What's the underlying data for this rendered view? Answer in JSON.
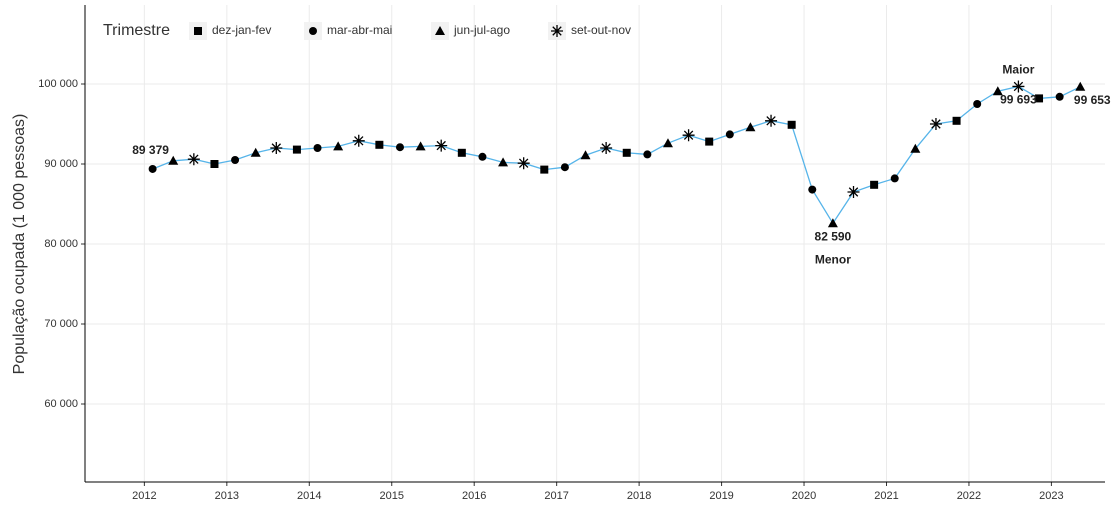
{
  "chart_data": {
    "type": "line",
    "y_label": "População ocupada (1 000 pessoas)",
    "legend_title": "Trimestre",
    "line_color": "#56b4e9",
    "marker_color": "#000000",
    "grid": true,
    "legend_position": "top-left",
    "xlim": [
      2011.28,
      2023.65
    ],
    "xticks": [
      2012,
      2013,
      2014,
      2015,
      2016,
      2017,
      2018,
      2019,
      2020,
      2021,
      2022,
      2023
    ],
    "ylim": [
      50250,
      109875
    ],
    "yticks": [
      {
        "value": 60000,
        "label": "60 000"
      },
      {
        "value": 70000,
        "label": "70 000"
      },
      {
        "value": 80000,
        "label": "80 000"
      },
      {
        "value": 90000,
        "label": "90 000"
      },
      {
        "value": 100000,
        "label": "100 000"
      }
    ],
    "series": [
      {
        "name": "dez-jan-fev",
        "marker": "square",
        "x": [
          2012.85,
          2013.85,
          2014.85,
          2015.85,
          2016.85,
          2017.85,
          2018.85,
          2019.85,
          2020.85,
          2021.85,
          2022.85
        ],
        "values": [
          90000,
          91800,
          92400,
          91400,
          89300,
          91400,
          92800,
          94900,
          87400,
          95400,
          98200
        ]
      },
      {
        "name": "mar-abr-mai",
        "marker": "circle",
        "x": [
          2012.1,
          2013.1,
          2014.1,
          2015.1,
          2016.1,
          2017.1,
          2018.1,
          2019.1,
          2020.1,
          2021.1,
          2022.1,
          2023.1
        ],
        "values": [
          89379,
          90500,
          92000,
          92100,
          90900,
          89600,
          91200,
          93700,
          86800,
          88200,
          97500,
          98400
        ],
        "value_labels": [
          "89 379",
          null,
          null,
          null,
          null,
          null,
          null,
          null,
          null,
          null,
          null,
          null
        ]
      },
      {
        "name": "jun-jul-ago",
        "marker": "triangle",
        "x": [
          2012.35,
          2013.35,
          2014.35,
          2015.35,
          2016.35,
          2017.35,
          2018.35,
          2019.35,
          2020.35,
          2021.35,
          2022.35,
          2023.35
        ],
        "values": [
          90400,
          91400,
          92200,
          92200,
          90200,
          91100,
          92600,
          94600,
          82590,
          91900,
          99100,
          99653
        ],
        "value_labels": [
          null,
          null,
          null,
          null,
          null,
          null,
          null,
          null,
          "82 590",
          null,
          null,
          "99 653"
        ]
      },
      {
        "name": "set-out-nov",
        "marker": "star",
        "x": [
          2012.6,
          2013.6,
          2014.6,
          2015.6,
          2016.6,
          2017.6,
          2018.6,
          2019.6,
          2020.6,
          2021.6,
          2022.6
        ],
        "values": [
          90600,
          92000,
          92900,
          92300,
          90100,
          92000,
          93600,
          95400,
          86500,
          95000,
          99693
        ],
        "value_labels": [
          null,
          null,
          null,
          null,
          null,
          null,
          null,
          null,
          null,
          null,
          "99 693"
        ]
      }
    ],
    "annotations": {
      "min": "Menor",
      "max": "Maior"
    }
  }
}
